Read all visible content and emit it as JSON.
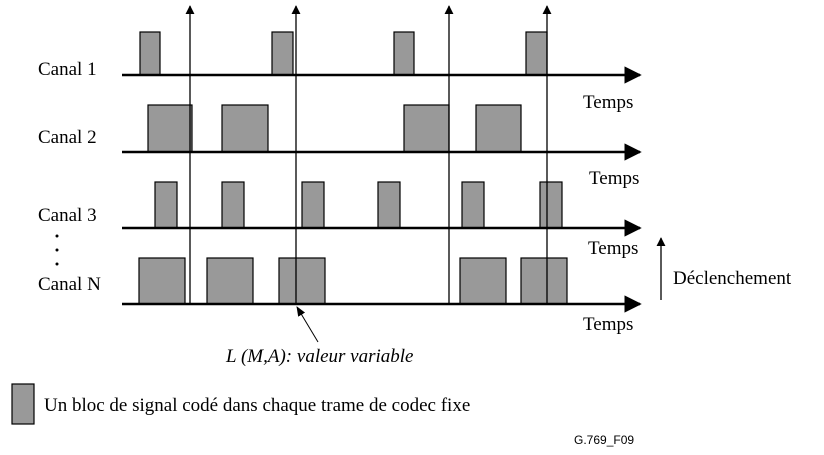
{
  "channels": [
    "Canal 1",
    "Canal 2",
    "Canal 3",
    "Canal N"
  ],
  "time_label": "Temps",
  "trigger_label": "Déclenchement",
  "annotation": "L (M,A): valeur variable",
  "legend": "Un bloc de signal codé dans chaque trame de codec fixe",
  "figure_id": "G.769_F09"
}
